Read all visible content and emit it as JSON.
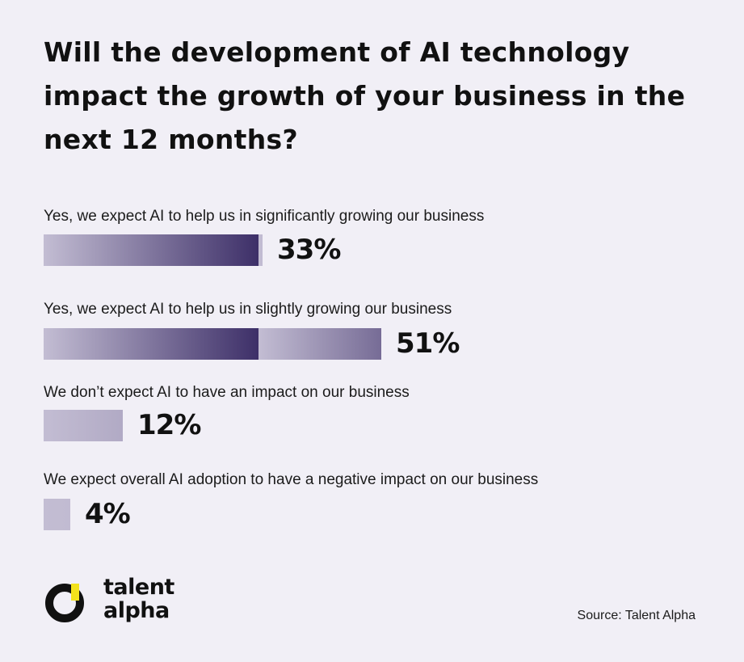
{
  "title": "Will the development of AI technology impact the growth of your business in the next 12 months?",
  "chart_data": {
    "type": "bar",
    "orientation": "horizontal",
    "categories": [
      "Yes, we expect AI to help us in significantly growing our business",
      "Yes, we expect AI to help us in slightly growing our business",
      "We don’t expect AI to have an impact on our business",
      "We expect overall AI adoption to have a negative impact on our business"
    ],
    "values": [
      33,
      51,
      12,
      4
    ],
    "value_labels": [
      "33%",
      "51%",
      "12%",
      "4%"
    ],
    "unit": "%",
    "xlim": [
      0,
      100
    ],
    "grid": false,
    "legend": "none",
    "bar_gradient": [
      "#c3bdd3",
      "#3d2f68"
    ]
  },
  "logo": {
    "line1": "talent",
    "line2": "alpha",
    "ring_color": "#111111",
    "accent_color": "#f3e21c"
  },
  "source": "Source: Talent Alpha"
}
